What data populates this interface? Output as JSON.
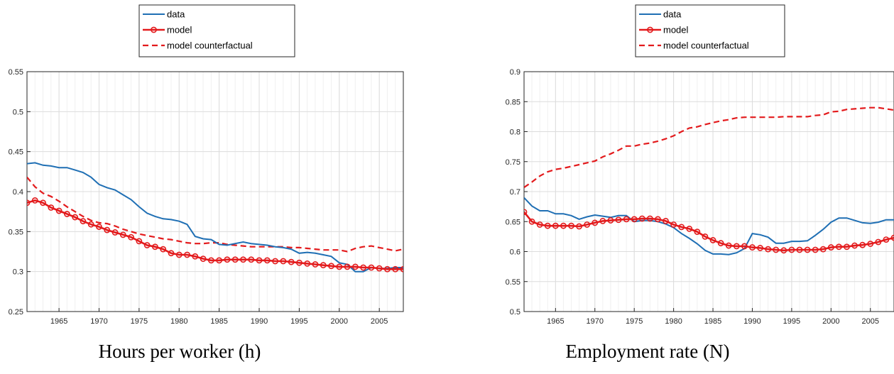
{
  "colors": {
    "data": "#1f6fb4",
    "model": "#e31a1c",
    "counterfactual": "#e31a1c",
    "grid": "#e6e6e6",
    "axis": "#262626"
  },
  "legend_labels": [
    "data",
    "model",
    "model counterfactual"
  ],
  "chart_data": [
    {
      "type": "line",
      "caption": "Hours per worker (h)",
      "xlim": [
        1961,
        2008
      ],
      "ylim": [
        0.25,
        0.55
      ],
      "grid": true,
      "legend_placement": "top-center outside",
      "x_ticks": [
        1965,
        1970,
        1975,
        1980,
        1985,
        1990,
        1995,
        2000,
        2005
      ],
      "y_ticks": [
        "0.25",
        "0.3",
        "0.35",
        "0.4",
        "0.45",
        "0.5",
        "0.55"
      ],
      "series": [
        {
          "name": "data",
          "style": "solid",
          "x": [
            1961,
            1962,
            1963,
            1964,
            1965,
            1966,
            1967,
            1968,
            1969,
            1970,
            1971,
            1972,
            1973,
            1974,
            1975,
            1976,
            1977,
            1978,
            1979,
            1980,
            1981,
            1982,
            1983,
            1984,
            1985,
            1986,
            1987,
            1988,
            1989,
            1990,
            1991,
            1992,
            1993,
            1994,
            1995,
            1996,
            1997,
            1998,
            1999,
            2000,
            2001,
            2002,
            2003,
            2004,
            2005,
            2006,
            2007,
            2008
          ],
          "y": [
            0.435,
            0.436,
            0.433,
            0.432,
            0.43,
            0.43,
            0.427,
            0.424,
            0.418,
            0.409,
            0.405,
            0.402,
            0.396,
            0.39,
            0.381,
            0.373,
            0.369,
            0.366,
            0.365,
            0.363,
            0.359,
            0.344,
            0.341,
            0.34,
            0.334,
            0.333,
            0.335,
            0.337,
            0.335,
            0.334,
            0.333,
            0.331,
            0.33,
            0.328,
            0.323,
            0.324,
            0.323,
            0.321,
            0.319,
            0.311,
            0.309,
            0.3,
            0.3,
            0.305,
            0.304,
            0.304,
            0.305,
            0.305
          ]
        },
        {
          "name": "model",
          "style": "solid-marker",
          "x": [
            1961,
            1962,
            1963,
            1964,
            1965,
            1966,
            1967,
            1968,
            1969,
            1970,
            1971,
            1972,
            1973,
            1974,
            1975,
            1976,
            1977,
            1978,
            1979,
            1980,
            1981,
            1982,
            1983,
            1984,
            1985,
            1986,
            1987,
            1988,
            1989,
            1990,
            1991,
            1992,
            1993,
            1994,
            1995,
            1996,
            1997,
            1998,
            1999,
            2000,
            2001,
            2002,
            2003,
            2004,
            2005,
            2006,
            2007,
            2008
          ],
          "y": [
            0.386,
            0.389,
            0.386,
            0.38,
            0.376,
            0.372,
            0.368,
            0.363,
            0.359,
            0.356,
            0.352,
            0.349,
            0.346,
            0.343,
            0.338,
            0.333,
            0.331,
            0.328,
            0.323,
            0.321,
            0.321,
            0.319,
            0.316,
            0.314,
            0.314,
            0.315,
            0.315,
            0.315,
            0.315,
            0.314,
            0.314,
            0.313,
            0.313,
            0.312,
            0.311,
            0.31,
            0.309,
            0.308,
            0.307,
            0.306,
            0.306,
            0.306,
            0.305,
            0.305,
            0.304,
            0.303,
            0.303,
            0.303
          ]
        },
        {
          "name": "model counterfactual",
          "style": "dashed",
          "x": [
            1961,
            1962,
            1963,
            1964,
            1965,
            1966,
            1967,
            1968,
            1969,
            1970,
            1971,
            1972,
            1973,
            1974,
            1975,
            1976,
            1977,
            1978,
            1979,
            1980,
            1981,
            1982,
            1983,
            1984,
            1985,
            1986,
            1987,
            1988,
            1989,
            1990,
            1991,
            1992,
            1993,
            1994,
            1995,
            1996,
            1997,
            1998,
            1999,
            2000,
            2001,
            2002,
            2003,
            2004,
            2005,
            2006,
            2007,
            2008
          ],
          "y": [
            0.418,
            0.406,
            0.398,
            0.394,
            0.388,
            0.381,
            0.375,
            0.369,
            0.364,
            0.361,
            0.36,
            0.357,
            0.353,
            0.35,
            0.347,
            0.345,
            0.343,
            0.341,
            0.34,
            0.338,
            0.336,
            0.335,
            0.335,
            0.336,
            0.336,
            0.334,
            0.333,
            0.332,
            0.331,
            0.331,
            0.331,
            0.331,
            0.331,
            0.33,
            0.33,
            0.329,
            0.328,
            0.327,
            0.327,
            0.327,
            0.325,
            0.329,
            0.331,
            0.332,
            0.33,
            0.328,
            0.326,
            0.328
          ]
        }
      ]
    },
    {
      "type": "line",
      "caption": "Employment rate (N)",
      "xlim": [
        1961,
        2008
      ],
      "ylim": [
        0.5,
        0.9
      ],
      "grid": true,
      "legend_placement": "top-center outside",
      "x_ticks": [
        1965,
        1970,
        1975,
        1980,
        1985,
        1990,
        1995,
        2000,
        2005
      ],
      "y_ticks": [
        "0.5",
        "0.55",
        "0.6",
        "0.65",
        "0.7",
        "0.75",
        "0.8",
        "0.85",
        "0.9"
      ],
      "series": [
        {
          "name": "data",
          "style": "solid",
          "x": [
            1961,
            1962,
            1963,
            1964,
            1965,
            1966,
            1967,
            1968,
            1969,
            1970,
            1971,
            1972,
            1973,
            1974,
            1975,
            1976,
            1977,
            1978,
            1979,
            1980,
            1981,
            1982,
            1983,
            1984,
            1985,
            1986,
            1987,
            1988,
            1989,
            1990,
            1991,
            1992,
            1993,
            1994,
            1995,
            1996,
            1997,
            1998,
            1999,
            2000,
            2001,
            2002,
            2003,
            2004,
            2005,
            2006,
            2007,
            2008
          ],
          "y": [
            0.69,
            0.676,
            0.668,
            0.668,
            0.663,
            0.663,
            0.66,
            0.654,
            0.658,
            0.661,
            0.659,
            0.657,
            0.66,
            0.66,
            0.65,
            0.652,
            0.652,
            0.65,
            0.646,
            0.64,
            0.63,
            0.622,
            0.613,
            0.602,
            0.596,
            0.596,
            0.595,
            0.598,
            0.605,
            0.63,
            0.628,
            0.624,
            0.614,
            0.614,
            0.617,
            0.617,
            0.618,
            0.627,
            0.637,
            0.649,
            0.656,
            0.656,
            0.652,
            0.648,
            0.647,
            0.649,
            0.653,
            0.653
          ]
        },
        {
          "name": "model",
          "style": "solid-marker",
          "x": [
            1961,
            1962,
            1963,
            1964,
            1965,
            1966,
            1967,
            1968,
            1969,
            1970,
            1971,
            1972,
            1973,
            1974,
            1975,
            1976,
            1977,
            1978,
            1979,
            1980,
            1981,
            1982,
            1983,
            1984,
            1985,
            1986,
            1987,
            1988,
            1989,
            1990,
            1991,
            1992,
            1993,
            1994,
            1995,
            1996,
            1997,
            1998,
            1999,
            2000,
            2001,
            2002,
            2003,
            2004,
            2005,
            2006,
            2007,
            2008
          ],
          "y": [
            0.666,
            0.65,
            0.645,
            0.643,
            0.643,
            0.643,
            0.643,
            0.642,
            0.645,
            0.648,
            0.651,
            0.652,
            0.653,
            0.654,
            0.654,
            0.655,
            0.655,
            0.654,
            0.651,
            0.645,
            0.641,
            0.638,
            0.633,
            0.625,
            0.619,
            0.614,
            0.61,
            0.609,
            0.609,
            0.607,
            0.606,
            0.604,
            0.603,
            0.602,
            0.603,
            0.603,
            0.603,
            0.603,
            0.604,
            0.607,
            0.608,
            0.608,
            0.61,
            0.611,
            0.613,
            0.616,
            0.62,
            0.623
          ]
        },
        {
          "name": "model counterfactual",
          "style": "dashed",
          "x": [
            1961,
            1962,
            1963,
            1964,
            1965,
            1966,
            1967,
            1968,
            1969,
            1970,
            1971,
            1972,
            1973,
            1974,
            1975,
            1976,
            1977,
            1978,
            1979,
            1980,
            1981,
            1982,
            1983,
            1984,
            1985,
            1986,
            1987,
            1988,
            1989,
            1990,
            1991,
            1992,
            1993,
            1994,
            1995,
            1996,
            1997,
            1998,
            1999,
            2000,
            2001,
            2002,
            2003,
            2004,
            2005,
            2006,
            2007,
            2008
          ],
          "y": [
            0.707,
            0.716,
            0.726,
            0.733,
            0.737,
            0.739,
            0.742,
            0.745,
            0.748,
            0.751,
            0.758,
            0.763,
            0.769,
            0.776,
            0.776,
            0.779,
            0.781,
            0.784,
            0.788,
            0.793,
            0.8,
            0.806,
            0.808,
            0.812,
            0.815,
            0.818,
            0.82,
            0.823,
            0.824,
            0.824,
            0.824,
            0.824,
            0.824,
            0.825,
            0.825,
            0.825,
            0.825,
            0.827,
            0.828,
            0.833,
            0.834,
            0.837,
            0.838,
            0.839,
            0.84,
            0.84,
            0.838,
            0.836
          ]
        }
      ]
    }
  ]
}
